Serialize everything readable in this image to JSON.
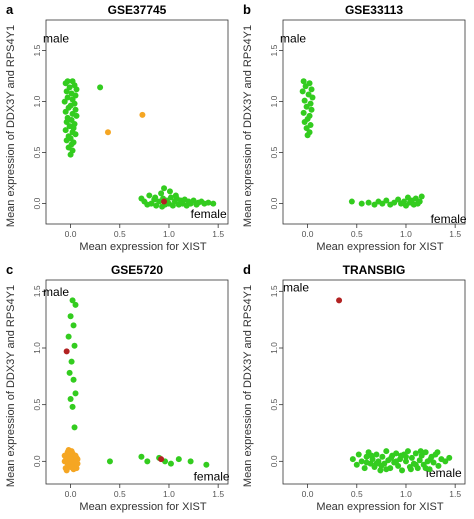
{
  "colors": {
    "green": "#33cc1f",
    "orange": "#f5a623",
    "red": "#b22222"
  },
  "chart_data": [
    {
      "type": "scatter",
      "panel_letter": "a",
      "title": "GSE37745",
      "xlabel": "Mean expression for XIST",
      "ylabel": "Mean expression of DDX3Y and RPS4Y1",
      "xlim": [
        -0.25,
        1.6
      ],
      "ylim": [
        -0.2,
        1.8
      ],
      "xticks": [
        "0.0",
        "0.5",
        "1.0",
        "1.5"
      ],
      "yticks": [
        "0.0",
        "0.5",
        "1.0",
        "1.5"
      ],
      "annotations": [
        {
          "text": "male",
          "x": -0.28,
          "y": 1.58
        },
        {
          "text": "female",
          "x": 1.22,
          "y": -0.14
        }
      ],
      "series": [
        {
          "color": "green",
          "points": [
            [
              -0.03,
              1.2
            ],
            [
              0.02,
              1.2
            ],
            [
              -0.05,
              1.18
            ],
            [
              0.04,
              1.16
            ],
            [
              -0.01,
              1.14
            ],
            [
              0.06,
              1.12
            ],
            [
              -0.04,
              1.1
            ],
            [
              0.01,
              1.08
            ],
            [
              0.05,
              1.06
            ],
            [
              -0.03,
              1.04
            ],
            [
              0.02,
              1.02
            ],
            [
              -0.06,
              1.0
            ],
            [
              0.04,
              0.98
            ],
            [
              0.0,
              0.96
            ],
            [
              -0.02,
              0.94
            ],
            [
              0.05,
              0.92
            ],
            [
              -0.05,
              0.9
            ],
            [
              0.02,
              0.88
            ],
            [
              0.06,
              0.86
            ],
            [
              -0.03,
              0.84
            ],
            [
              0.01,
              0.82
            ],
            [
              -0.04,
              0.8
            ],
            [
              0.04,
              0.78
            ],
            [
              -0.01,
              0.76
            ],
            [
              0.03,
              0.74
            ],
            [
              -0.05,
              0.72
            ],
            [
              0.02,
              0.7
            ],
            [
              0.05,
              0.68
            ],
            [
              -0.02,
              0.66
            ],
            [
              0.0,
              0.64
            ],
            [
              -0.04,
              0.62
            ],
            [
              0.03,
              0.6
            ],
            [
              0.01,
              0.58
            ],
            [
              -0.02,
              0.55
            ],
            [
              0.02,
              0.52
            ],
            [
              0.0,
              0.48
            ],
            [
              0.3,
              1.14
            ],
            [
              0.72,
              0.05
            ],
            [
              0.75,
              0.02
            ],
            [
              0.78,
              -0.01
            ],
            [
              0.8,
              0.08
            ],
            [
              0.82,
              0.0
            ],
            [
              0.85,
              0.04
            ],
            [
              0.87,
              -0.02
            ],
            [
              0.9,
              0.02
            ],
            [
              0.92,
              0.1
            ],
            [
              0.94,
              0.05
            ],
            [
              0.96,
              -0.01
            ],
            [
              0.98,
              0.03
            ],
            [
              1.0,
              0.0
            ],
            [
              1.02,
              0.06
            ],
            [
              1.04,
              -0.02
            ],
            [
              1.06,
              0.02
            ],
            [
              1.08,
              0.05
            ],
            [
              1.1,
              -0.01
            ],
            [
              1.12,
              0.03
            ],
            [
              1.14,
              0.0
            ],
            [
              1.16,
              0.04
            ],
            [
              1.18,
              -0.02
            ],
            [
              1.2,
              0.02
            ],
            [
              1.22,
              0.0
            ],
            [
              1.25,
              0.03
            ],
            [
              1.28,
              -0.01
            ],
            [
              1.3,
              0.01
            ],
            [
              1.33,
              0.02
            ],
            [
              1.36,
              0.0
            ],
            [
              1.4,
              0.01
            ],
            [
              1.45,
              0.0
            ],
            [
              0.86,
              0.06
            ],
            [
              0.93,
              -0.03
            ],
            [
              1.01,
              0.12
            ],
            [
              1.07,
              0.08
            ],
            [
              0.95,
              0.15
            ]
          ]
        },
        {
          "color": "orange",
          "points": [
            [
              0.38,
              0.7
            ],
            [
              0.73,
              0.87
            ]
          ]
        },
        {
          "color": "red",
          "points": [
            [
              0.95,
              0.02
            ]
          ]
        }
      ]
    },
    {
      "type": "scatter",
      "panel_letter": "b",
      "title": "GSE33113",
      "xlabel": "Mean expression for XIST",
      "ylabel": "Mean expression of DDX3Y and RPS4Y1",
      "xlim": [
        -0.25,
        1.6
      ],
      "ylim": [
        -0.2,
        1.8
      ],
      "xticks": [
        "0.0",
        "0.5",
        "1.0",
        "1.5"
      ],
      "yticks": [
        "0.0",
        "0.5",
        "1.0",
        "1.5"
      ],
      "annotations": [
        {
          "text": "male",
          "x": -0.28,
          "y": 1.58
        },
        {
          "text": "female",
          "x": 1.25,
          "y": -0.19
        }
      ],
      "series": [
        {
          "color": "green",
          "points": [
            [
              -0.04,
              1.2
            ],
            [
              0.02,
              1.18
            ],
            [
              -0.02,
              1.15
            ],
            [
              0.04,
              1.12
            ],
            [
              -0.05,
              1.1
            ],
            [
              0.01,
              1.07
            ],
            [
              0.05,
              1.04
            ],
            [
              -0.03,
              1.01
            ],
            [
              0.03,
              0.98
            ],
            [
              -0.01,
              0.95
            ],
            [
              0.04,
              0.92
            ],
            [
              -0.04,
              0.89
            ],
            [
              0.02,
              0.86
            ],
            [
              0.0,
              0.83
            ],
            [
              -0.03,
              0.8
            ],
            [
              0.03,
              0.77
            ],
            [
              -0.01,
              0.74
            ],
            [
              0.02,
              0.7
            ],
            [
              0.0,
              0.67
            ],
            [
              0.45,
              0.02
            ],
            [
              0.55,
              0.0
            ],
            [
              0.62,
              0.01
            ],
            [
              0.68,
              -0.01
            ],
            [
              0.72,
              0.02
            ],
            [
              0.76,
              0.0
            ],
            [
              0.8,
              0.03
            ],
            [
              0.84,
              -0.01
            ],
            [
              0.88,
              0.01
            ],
            [
              0.92,
              0.04
            ],
            [
              0.95,
              0.0
            ],
            [
              0.98,
              0.02
            ],
            [
              1.0,
              -0.02
            ],
            [
              1.02,
              0.06
            ],
            [
              1.04,
              0.01
            ],
            [
              1.06,
              0.03
            ],
            [
              1.08,
              -0.01
            ],
            [
              1.1,
              0.05
            ],
            [
              1.12,
              0.0
            ],
            [
              1.14,
              0.02
            ],
            [
              1.16,
              0.07
            ]
          ]
        }
      ]
    },
    {
      "type": "scatter",
      "panel_letter": "c",
      "title": "GSE5720",
      "xlabel": "Mean expression for XIST",
      "ylabel": "Mean expression of DDX3Y and RPS4Y1",
      "xlim": [
        -0.25,
        1.6
      ],
      "ylim": [
        -0.2,
        1.6
      ],
      "xticks": [
        "0.0",
        "0.5",
        "1.0",
        "1.5"
      ],
      "yticks": [
        "0.0",
        "0.5",
        "1.0",
        "1.5"
      ],
      "annotations": [
        {
          "text": "male",
          "x": -0.28,
          "y": 1.46
        },
        {
          "text": "female",
          "x": 1.25,
          "y": -0.17
        }
      ],
      "series": [
        {
          "color": "green",
          "points": [
            [
              0.02,
              1.42
            ],
            [
              0.05,
              1.38
            ],
            [
              0.0,
              1.28
            ],
            [
              0.03,
              1.2
            ],
            [
              -0.02,
              1.1
            ],
            [
              0.04,
              1.02
            ],
            [
              0.01,
              0.88
            ],
            [
              -0.01,
              0.78
            ],
            [
              0.03,
              0.72
            ],
            [
              0.05,
              0.6
            ],
            [
              0.0,
              0.55
            ],
            [
              0.02,
              0.48
            ],
            [
              0.04,
              0.3
            ],
            [
              0.4,
              0.0
            ],
            [
              0.72,
              0.04
            ],
            [
              0.78,
              0.0
            ],
            [
              0.9,
              0.03
            ],
            [
              0.96,
              0.0
            ],
            [
              1.02,
              -0.02
            ],
            [
              1.1,
              0.02
            ],
            [
              1.22,
              0.0
            ],
            [
              1.38,
              -0.03
            ]
          ]
        },
        {
          "color": "orange",
          "points": [
            [
              -0.06,
              0.05
            ],
            [
              -0.04,
              0.02
            ],
            [
              -0.02,
              -0.02
            ],
            [
              0.0,
              0.06
            ],
            [
              0.02,
              0.0
            ],
            [
              0.04,
              -0.04
            ],
            [
              0.06,
              0.03
            ],
            [
              -0.05,
              -0.06
            ],
            [
              -0.03,
              0.08
            ],
            [
              -0.01,
              0.01
            ],
            [
              0.01,
              -0.03
            ],
            [
              0.03,
              0.04
            ],
            [
              0.05,
              -0.01
            ],
            [
              0.07,
              0.02
            ],
            [
              -0.06,
              0.0
            ],
            [
              -0.04,
              -0.08
            ],
            [
              -0.02,
              0.1
            ],
            [
              0.0,
              -0.05
            ],
            [
              0.02,
              0.07
            ],
            [
              0.04,
              0.01
            ],
            [
              0.06,
              -0.06
            ],
            [
              -0.05,
              0.04
            ],
            [
              -0.03,
              -0.02
            ],
            [
              -0.01,
              0.03
            ],
            [
              0.01,
              0.09
            ],
            [
              0.03,
              -0.07
            ],
            [
              0.05,
              0.05
            ],
            [
              0.07,
              -0.02
            ],
            [
              -0.02,
              0.0
            ],
            [
              0.0,
              0.02
            ]
          ]
        },
        {
          "color": "red",
          "points": [
            [
              -0.04,
              0.97
            ],
            [
              0.92,
              0.02
            ]
          ]
        }
      ]
    },
    {
      "type": "scatter",
      "panel_letter": "d",
      "title": "TRANSBIG",
      "xlabel": "Mean expression for XIST",
      "ylabel": "Mean expression of DDX3Y and RPS4Y1",
      "xlim": [
        -0.25,
        1.6
      ],
      "ylim": [
        -0.2,
        1.6
      ],
      "xticks": [
        "0.0",
        "0.5",
        "1.0",
        "1.5"
      ],
      "yticks": [
        "0.0",
        "0.5",
        "1.0",
        "1.5"
      ],
      "annotations": [
        {
          "text": "male",
          "x": -0.25,
          "y": 1.5
        },
        {
          "text": "female",
          "x": 1.2,
          "y": -0.14
        }
      ],
      "series": [
        {
          "color": "green",
          "points": [
            [
              0.46,
              0.02
            ],
            [
              0.5,
              -0.03
            ],
            [
              0.52,
              0.06
            ],
            [
              0.55,
              0.0
            ],
            [
              0.58,
              -0.06
            ],
            [
              0.6,
              0.04
            ],
            [
              0.62,
              0.08
            ],
            [
              0.64,
              -0.02
            ],
            [
              0.66,
              0.02
            ],
            [
              0.68,
              -0.05
            ],
            [
              0.7,
              0.06
            ],
            [
              0.72,
              0.0
            ],
            [
              0.74,
              -0.08
            ],
            [
              0.76,
              0.04
            ],
            [
              0.78,
              -0.02
            ],
            [
              0.8,
              0.09
            ],
            [
              0.82,
              0.01
            ],
            [
              0.84,
              -0.06
            ],
            [
              0.86,
              0.05
            ],
            [
              0.88,
              -0.01
            ],
            [
              0.9,
              0.07
            ],
            [
              0.92,
              -0.04
            ],
            [
              0.94,
              0.02
            ],
            [
              0.96,
              -0.08
            ],
            [
              0.98,
              0.06
            ],
            [
              1.0,
              0.0
            ],
            [
              1.02,
              0.09
            ],
            [
              1.04,
              -0.05
            ],
            [
              1.06,
              0.03
            ],
            [
              1.08,
              -0.02
            ],
            [
              1.1,
              0.07
            ],
            [
              1.12,
              -0.06
            ],
            [
              1.14,
              0.01
            ],
            [
              1.16,
              0.05
            ],
            [
              1.18,
              -0.03
            ],
            [
              1.2,
              0.08
            ],
            [
              1.22,
              0.0
            ],
            [
              1.24,
              -0.07
            ],
            [
              1.26,
              0.04
            ],
            [
              1.28,
              -0.01
            ],
            [
              1.3,
              0.06
            ],
            [
              1.33,
              -0.04
            ],
            [
              1.36,
              0.02
            ],
            [
              1.4,
              0.0
            ],
            [
              1.44,
              0.03
            ],
            [
              0.65,
              0.05
            ],
            [
              0.75,
              -0.04
            ],
            [
              0.85,
              0.03
            ],
            [
              0.95,
              0.05
            ],
            [
              1.05,
              -0.07
            ],
            [
              1.15,
              0.09
            ],
            [
              1.25,
              0.02
            ],
            [
              0.7,
              -0.02
            ],
            [
              0.8,
              -0.07
            ],
            [
              0.9,
              0.0
            ],
            [
              1.0,
              0.04
            ],
            [
              1.1,
              -0.03
            ],
            [
              1.2,
              -0.06
            ],
            [
              0.6,
              -0.01
            ],
            [
              1.32,
              0.08
            ]
          ]
        },
        {
          "color": "red",
          "points": [
            [
              0.32,
              1.42
            ]
          ]
        }
      ]
    }
  ]
}
